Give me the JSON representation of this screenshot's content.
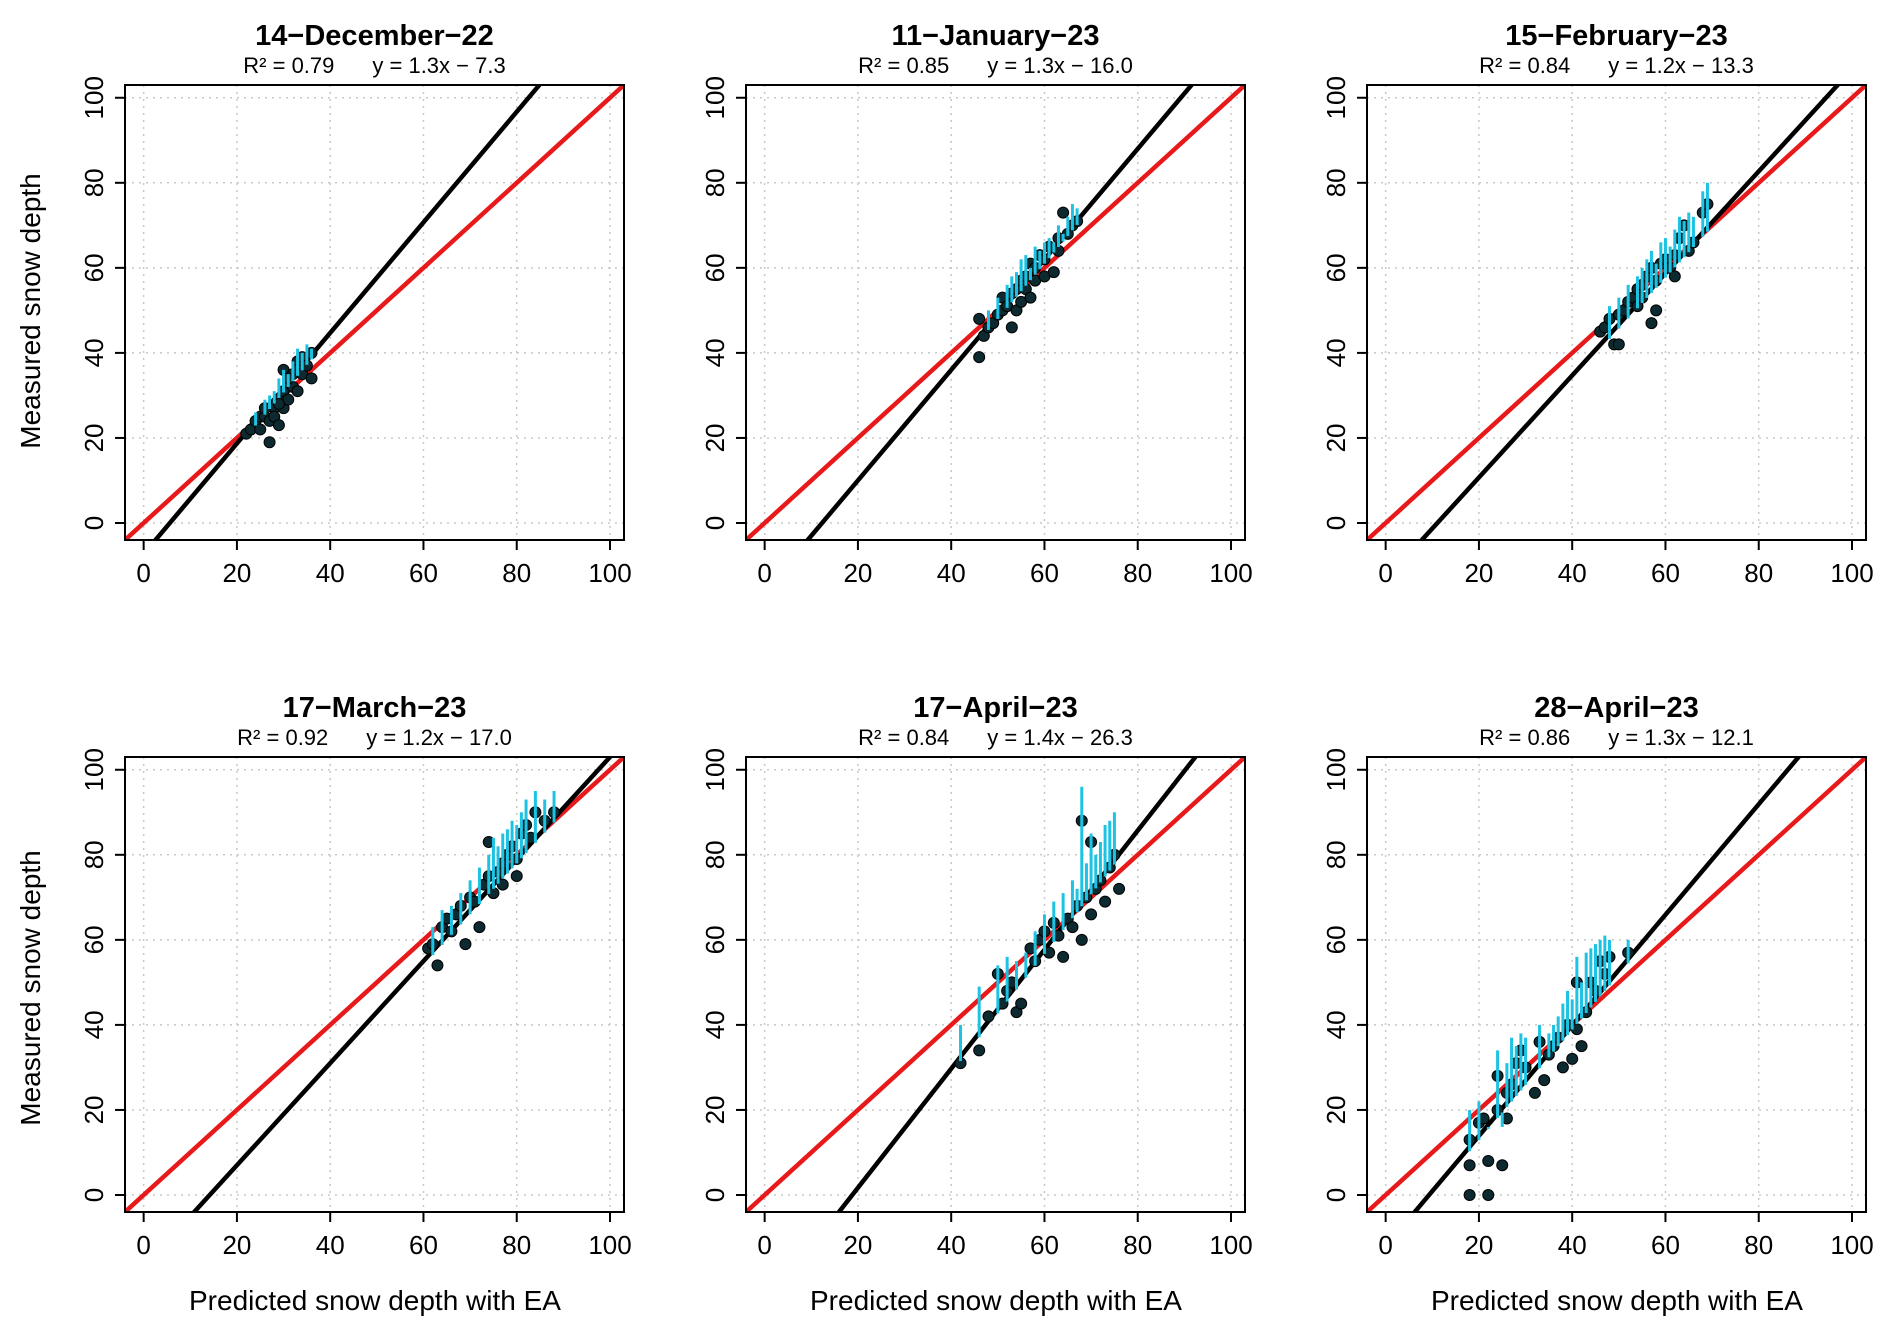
{
  "figure": {
    "y_axis_label": "Measured snow depth",
    "x_axis_label": "Predicted snow depth with EA"
  },
  "colors": {
    "one_to_one_line": "#e8191a",
    "fit_line": "#000000",
    "error_bar": "#1ec3e3",
    "point": "#0d2a30",
    "grid": "#c8c8c8"
  },
  "chart_data": [
    {
      "type": "scatter",
      "title": "14−December−22",
      "r2_label": "R² = 0.79",
      "equation_label": "y = 1.3x − 7.3",
      "slope": 1.3,
      "intercept": -7.3,
      "xlim": [
        0,
        100
      ],
      "ylim": [
        0,
        100
      ],
      "xticks": [
        "0",
        "20",
        "40",
        "60",
        "80",
        "100"
      ],
      "yticks": [
        "0",
        "20",
        "40",
        "60",
        "80",
        "100"
      ],
      "grid": true,
      "points": [
        [
          22,
          21
        ],
        [
          23,
          22
        ],
        [
          24,
          24
        ],
        [
          25,
          25
        ],
        [
          25,
          22
        ],
        [
          26,
          25
        ],
        [
          27,
          24
        ],
        [
          27,
          19
        ],
        [
          28,
          27
        ],
        [
          28,
          25
        ],
        [
          29,
          29
        ],
        [
          29,
          23
        ],
        [
          30,
          31
        ],
        [
          30,
          27
        ],
        [
          30,
          36
        ],
        [
          31,
          33
        ],
        [
          31,
          29
        ],
        [
          32,
          35
        ],
        [
          32,
          32
        ],
        [
          33,
          38
        ],
        [
          33,
          36
        ],
        [
          34,
          39
        ],
        [
          34,
          35
        ],
        [
          35,
          37
        ],
        [
          36,
          40
        ],
        [
          36,
          34
        ],
        [
          26,
          27
        ],
        [
          29,
          28
        ],
        [
          31,
          34
        ],
        [
          33,
          31
        ]
      ],
      "error_bars": [
        [
          24,
          26
        ],
        [
          26,
          29
        ],
        [
          28,
          31
        ],
        [
          29,
          34
        ],
        [
          30,
          36
        ],
        [
          31,
          35
        ],
        [
          32,
          38
        ],
        [
          33,
          41
        ],
        [
          34,
          40
        ],
        [
          35,
          42
        ],
        [
          36,
          41
        ],
        [
          27,
          30
        ],
        [
          30,
          33
        ]
      ]
    },
    {
      "type": "scatter",
      "title": "11−January−23",
      "r2_label": "R² = 0.85",
      "equation_label": "y = 1.3x − 16.0",
      "slope": 1.3,
      "intercept": -16.0,
      "xlim": [
        0,
        100
      ],
      "ylim": [
        0,
        100
      ],
      "xticks": [
        "0",
        "20",
        "40",
        "60",
        "80",
        "100"
      ],
      "yticks": [
        "0",
        "20",
        "40",
        "60",
        "80",
        "100"
      ],
      "grid": true,
      "points": [
        [
          46,
          39
        ],
        [
          46,
          48
        ],
        [
          47,
          44
        ],
        [
          48,
          46
        ],
        [
          49,
          47
        ],
        [
          50,
          49
        ],
        [
          51,
          50
        ],
        [
          51,
          53
        ],
        [
          52,
          51
        ],
        [
          53,
          54
        ],
        [
          53,
          46
        ],
        [
          54,
          55
        ],
        [
          54,
          50
        ],
        [
          55,
          57
        ],
        [
          55,
          52
        ],
        [
          56,
          58
        ],
        [
          56,
          55
        ],
        [
          57,
          61
        ],
        [
          57,
          53
        ],
        [
          58,
          60
        ],
        [
          58,
          57
        ],
        [
          59,
          63
        ],
        [
          60,
          62
        ],
        [
          60,
          58
        ],
        [
          61,
          65
        ],
        [
          62,
          59
        ],
        [
          63,
          64
        ],
        [
          63,
          67
        ],
        [
          64,
          73
        ],
        [
          65,
          68
        ],
        [
          66,
          70
        ],
        [
          67,
          71
        ]
      ],
      "error_bars": [
        [
          48,
          50
        ],
        [
          50,
          53
        ],
        [
          52,
          56
        ],
        [
          53,
          58
        ],
        [
          54,
          59
        ],
        [
          55,
          62
        ],
        [
          56,
          63
        ],
        [
          57,
          60
        ],
        [
          58,
          65
        ],
        [
          59,
          64
        ],
        [
          60,
          66
        ],
        [
          61,
          67
        ],
        [
          62,
          66
        ],
        [
          63,
          70
        ],
        [
          64,
          68
        ],
        [
          65,
          72
        ],
        [
          66,
          75
        ],
        [
          67,
          74
        ]
      ]
    },
    {
      "type": "scatter",
      "title": "15−February−23",
      "r2_label": "R² = 0.84",
      "equation_label": "y = 1.2x − 13.3",
      "slope": 1.2,
      "intercept": -13.3,
      "xlim": [
        0,
        100
      ],
      "ylim": [
        0,
        100
      ],
      "xticks": [
        "0",
        "20",
        "40",
        "60",
        "80",
        "100"
      ],
      "yticks": [
        "0",
        "20",
        "40",
        "60",
        "80",
        "100"
      ],
      "grid": true,
      "points": [
        [
          46,
          45
        ],
        [
          47,
          46
        ],
        [
          48,
          48
        ],
        [
          49,
          42
        ],
        [
          50,
          42
        ],
        [
          50,
          49
        ],
        [
          51,
          50
        ],
        [
          52,
          52
        ],
        [
          53,
          53
        ],
        [
          54,
          55
        ],
        [
          54,
          51
        ],
        [
          55,
          56
        ],
        [
          55,
          53
        ],
        [
          56,
          58
        ],
        [
          57,
          47
        ],
        [
          57,
          60
        ],
        [
          58,
          50
        ],
        [
          58,
          57
        ],
        [
          59,
          61
        ],
        [
          60,
          62
        ],
        [
          61,
          60
        ],
        [
          62,
          63
        ],
        [
          62,
          58
        ],
        [
          63,
          67
        ],
        [
          64,
          70
        ],
        [
          65,
          64
        ],
        [
          66,
          66
        ],
        [
          68,
          73
        ],
        [
          69,
          75
        ]
      ],
      "error_bars": [
        [
          48,
          51
        ],
        [
          50,
          53
        ],
        [
          52,
          56
        ],
        [
          54,
          58
        ],
        [
          55,
          60
        ],
        [
          56,
          62
        ],
        [
          57,
          64
        ],
        [
          58,
          61
        ],
        [
          59,
          66
        ],
        [
          60,
          67
        ],
        [
          61,
          65
        ],
        [
          62,
          69
        ],
        [
          63,
          72
        ],
        [
          64,
          71
        ],
        [
          65,
          73
        ],
        [
          66,
          72
        ],
        [
          68,
          78
        ],
        [
          69,
          80
        ]
      ]
    },
    {
      "type": "scatter",
      "title": "17−March−23",
      "r2_label": "R² = 0.92",
      "equation_label": "y = 1.2x − 17.0",
      "slope": 1.2,
      "intercept": -17.0,
      "xlim": [
        0,
        100
      ],
      "ylim": [
        0,
        100
      ],
      "xticks": [
        "0",
        "20",
        "40",
        "60",
        "80",
        "100"
      ],
      "yticks": [
        "0",
        "20",
        "40",
        "60",
        "80",
        "100"
      ],
      "grid": true,
      "points": [
        [
          61,
          58
        ],
        [
          62,
          59
        ],
        [
          63,
          54
        ],
        [
          64,
          63
        ],
        [
          65,
          65
        ],
        [
          66,
          62
        ],
        [
          67,
          66
        ],
        [
          68,
          68
        ],
        [
          69,
          59
        ],
        [
          70,
          70
        ],
        [
          71,
          69
        ],
        [
          72,
          63
        ],
        [
          73,
          73
        ],
        [
          74,
          75
        ],
        [
          74,
          83
        ],
        [
          75,
          71
        ],
        [
          76,
          76
        ],
        [
          77,
          78
        ],
        [
          77,
          73
        ],
        [
          78,
          80
        ],
        [
          79,
          82
        ],
        [
          80,
          75
        ],
        [
          80,
          79
        ],
        [
          81,
          85
        ],
        [
          82,
          87
        ],
        [
          83,
          84
        ],
        [
          84,
          90
        ],
        [
          86,
          88
        ],
        [
          88,
          90
        ]
      ],
      "error_bars": [
        [
          62,
          63
        ],
        [
          64,
          67
        ],
        [
          66,
          68
        ],
        [
          68,
          71
        ],
        [
          70,
          74
        ],
        [
          72,
          77
        ],
        [
          74,
          80
        ],
        [
          75,
          84
        ],
        [
          76,
          82
        ],
        [
          77,
          85
        ],
        [
          78,
          86
        ],
        [
          79,
          88
        ],
        [
          80,
          87
        ],
        [
          81,
          90
        ],
        [
          82,
          93
        ],
        [
          84,
          95
        ],
        [
          86,
          93
        ],
        [
          88,
          95
        ]
      ]
    },
    {
      "type": "scatter",
      "title": "17−April−23",
      "r2_label": "R² = 0.84",
      "equation_label": "y = 1.4x − 26.3",
      "slope": 1.4,
      "intercept": -26.3,
      "xlim": [
        0,
        100
      ],
      "ylim": [
        0,
        100
      ],
      "xticks": [
        "0",
        "20",
        "40",
        "60",
        "80",
        "100"
      ],
      "yticks": [
        "0",
        "20",
        "40",
        "60",
        "80",
        "100"
      ],
      "grid": true,
      "points": [
        [
          42,
          31
        ],
        [
          46,
          34
        ],
        [
          48,
          42
        ],
        [
          50,
          52
        ],
        [
          51,
          45
        ],
        [
          52,
          48
        ],
        [
          53,
          50
        ],
        [
          54,
          43
        ],
        [
          55,
          45
        ],
        [
          57,
          58
        ],
        [
          58,
          55
        ],
        [
          59,
          60
        ],
        [
          60,
          62
        ],
        [
          61,
          57
        ],
        [
          62,
          64
        ],
        [
          63,
          61
        ],
        [
          64,
          56
        ],
        [
          65,
          65
        ],
        [
          66,
          63
        ],
        [
          67,
          68
        ],
        [
          68,
          88
        ],
        [
          68,
          60
        ],
        [
          69,
          70
        ],
        [
          70,
          66
        ],
        [
          70,
          83
        ],
        [
          71,
          72
        ],
        [
          72,
          74
        ],
        [
          73,
          69
        ],
        [
          74,
          77
        ],
        [
          75,
          80
        ],
        [
          76,
          72
        ]
      ],
      "error_bars": [
        [
          42,
          40
        ],
        [
          46,
          49
        ],
        [
          50,
          54
        ],
        [
          52,
          56
        ],
        [
          54,
          55
        ],
        [
          56,
          57
        ],
        [
          58,
          62
        ],
        [
          60,
          66
        ],
        [
          62,
          69
        ],
        [
          64,
          71
        ],
        [
          66,
          74
        ],
        [
          67,
          72
        ],
        [
          68,
          96
        ],
        [
          69,
          78
        ],
        [
          70,
          85
        ],
        [
          71,
          80
        ],
        [
          72,
          83
        ],
        [
          73,
          87
        ],
        [
          74,
          88
        ],
        [
          75,
          90
        ]
      ]
    },
    {
      "type": "scatter",
      "title": "28−April−23",
      "r2_label": "R² = 0.86",
      "equation_label": "y = 1.3x − 12.1",
      "slope": 1.3,
      "intercept": -12.1,
      "xlim": [
        0,
        100
      ],
      "ylim": [
        0,
        100
      ],
      "xticks": [
        "0",
        "20",
        "40",
        "60",
        "80",
        "100"
      ],
      "yticks": [
        "0",
        "20",
        "40",
        "60",
        "80",
        "100"
      ],
      "grid": true,
      "points": [
        [
          18,
          0
        ],
        [
          18,
          7
        ],
        [
          18,
          13
        ],
        [
          20,
          17
        ],
        [
          21,
          18
        ],
        [
          22,
          0
        ],
        [
          22,
          8
        ],
        [
          24,
          20
        ],
        [
          24,
          28
        ],
        [
          25,
          7
        ],
        [
          26,
          18
        ],
        [
          26,
          24
        ],
        [
          27,
          26
        ],
        [
          28,
          31
        ],
        [
          29,
          34
        ],
        [
          30,
          30
        ],
        [
          32,
          24
        ],
        [
          33,
          36
        ],
        [
          34,
          27
        ],
        [
          35,
          33
        ],
        [
          36,
          35
        ],
        [
          37,
          37
        ],
        [
          38,
          30
        ],
        [
          39,
          40
        ],
        [
          40,
          32
        ],
        [
          41,
          39
        ],
        [
          41,
          50
        ],
        [
          42,
          35
        ],
        [
          43,
          43
        ],
        [
          44,
          50
        ],
        [
          45,
          48
        ],
        [
          46,
          55
        ],
        [
          47,
          52
        ],
        [
          48,
          56
        ],
        [
          52,
          57
        ]
      ],
      "error_bars": [
        [
          18,
          20
        ],
        [
          20,
          22
        ],
        [
          22,
          16
        ],
        [
          24,
          34
        ],
        [
          25,
          16
        ],
        [
          26,
          31
        ],
        [
          27,
          37
        ],
        [
          28,
          35
        ],
        [
          29,
          38
        ],
        [
          30,
          37
        ],
        [
          33,
          40
        ],
        [
          35,
          38
        ],
        [
          36,
          40
        ],
        [
          37,
          42
        ],
        [
          38,
          45
        ],
        [
          39,
          48
        ],
        [
          40,
          46
        ],
        [
          41,
          56
        ],
        [
          42,
          50
        ],
        [
          43,
          57
        ],
        [
          44,
          58
        ],
        [
          45,
          59
        ],
        [
          46,
          60
        ],
        [
          47,
          61
        ],
        [
          48,
          60
        ],
        [
          52,
          60
        ]
      ]
    }
  ]
}
